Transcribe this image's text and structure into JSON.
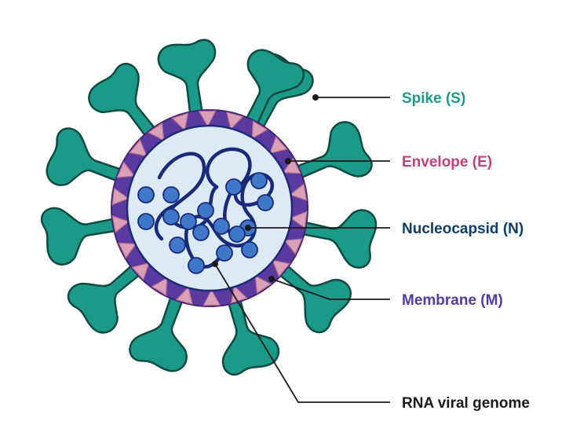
{
  "labels": {
    "spike": "Spike (S)",
    "envelope": "Envelope (E)",
    "nucleocapsid": "Nucleocapsid (N)",
    "membrane": "Membrane (M)",
    "rna": "RNA viral genome"
  },
  "colors": {
    "spike": "#1b9a8a",
    "spike_outline": "#0e4a40",
    "envelope": "#d9a0b8",
    "envelope_label": "#c2407a",
    "membrane": "#5b3aa0",
    "membrane_label": "#553aa0",
    "interior": "#dceaf6",
    "rna": "#1a2a7a",
    "nucleocapsid_ball": "#3f78c8",
    "nucleocapsid_label": "#0f3f66",
    "line": "#1a1a1a",
    "text_dark": "#1a1a1a"
  }
}
